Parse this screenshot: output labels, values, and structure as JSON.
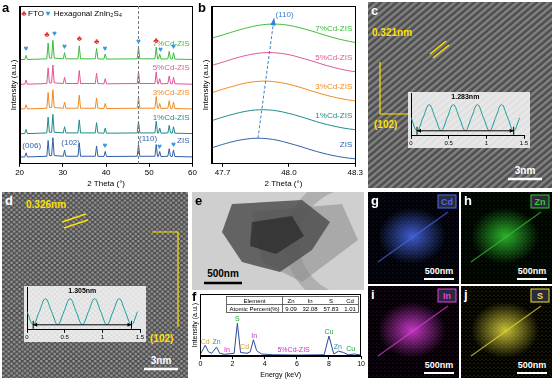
{
  "chart_data": [
    {
      "panel": "a",
      "type": "line",
      "x": [
        20,
        21.2,
        21.5,
        21.8,
        26.3,
        26.6,
        26.9,
        27.4,
        27.7,
        28.0,
        30.1,
        30.4,
        30.7,
        33.5,
        33.8,
        34.1,
        37.5,
        37.8,
        38.1,
        39.5,
        39.8,
        40.1,
        47.2,
        47.5,
        47.8,
        51.3,
        51.6,
        51.9,
        52.1,
        52.4,
        52.7,
        54.3,
        54.6,
        54.9,
        55.3,
        55.6,
        55.9,
        60
      ],
      "xlim": [
        20,
        60
      ],
      "xticks": [
        20,
        30,
        40,
        50,
        60
      ],
      "ylim": [
        0,
        115
      ],
      "x_label": "2 Theta (°)",
      "y_label": "Intensity (a.u.)",
      "tick_labels": "x",
      "grid": false,
      "series": [
        {
          "name": "ZIS",
          "color": "#2f5fa8",
          "values": [
            5,
            5,
            8,
            5,
            5.5,
            17,
            6,
            6,
            19,
            6,
            5.5,
            10,
            5.5,
            5.5,
            15,
            5.5,
            5.5,
            13,
            5.5,
            5.3,
            9,
            5.3,
            5.5,
            14,
            5.5,
            5.5,
            14,
            5.5,
            5.3,
            9,
            5.3,
            5.5,
            11,
            5.5,
            5.3,
            10,
            5.3,
            5
          ]
        },
        {
          "name": "1%Cd-ZIS",
          "color": "#1f8a8a",
          "values": [
            22,
            22,
            25,
            22,
            22.5,
            34,
            23,
            23,
            36,
            23,
            22.5,
            27,
            22.5,
            22.5,
            32,
            22.5,
            22.5,
            30,
            22.5,
            22.3,
            26,
            22.3,
            22.5,
            31,
            22.5,
            22.5,
            31,
            22.5,
            22.3,
            26,
            22.3,
            22.5,
            28,
            22.5,
            22.3,
            27,
            22.3,
            22
          ]
        },
        {
          "name": "3%Cd-ZIS",
          "color": "#f08a24",
          "values": [
            40,
            40,
            43,
            40,
            40.5,
            52,
            41,
            41,
            54,
            41,
            40.5,
            45,
            40.5,
            40.5,
            50,
            40.5,
            40.5,
            48,
            40.5,
            40.3,
            44,
            40.3,
            40.5,
            49,
            40.5,
            40.5,
            49,
            40.5,
            40.3,
            44,
            40.3,
            40.5,
            46,
            40.5,
            40.3,
            45,
            40.3,
            40
          ]
        },
        {
          "name": "5%Cd-ZIS",
          "color": "#e0559a",
          "values": [
            58,
            58,
            61,
            58,
            58.5,
            70,
            59,
            59,
            72,
            59,
            58.5,
            63,
            58.5,
            58.5,
            68,
            58.5,
            58.5,
            66,
            58.5,
            58.3,
            62,
            58.3,
            58.5,
            67,
            58.5,
            58.5,
            67,
            58.5,
            58.3,
            62,
            58.3,
            58.5,
            64,
            58.5,
            58.3,
            63,
            58.3,
            58
          ]
        },
        {
          "name": "7%Cd-ZIS",
          "color": "#3cbc3c",
          "values": [
            76,
            76,
            79,
            76,
            76.5,
            88,
            77,
            77,
            90,
            77,
            76.5,
            81,
            76.5,
            76.5,
            86,
            76.5,
            76.5,
            84,
            76.5,
            76.3,
            80,
            76.3,
            76.5,
            85,
            76.5,
            76.5,
            85,
            76.5,
            76.3,
            80,
            76.3,
            76.5,
            82,
            76.5,
            76.3,
            81,
            76.3,
            76
          ]
        }
      ],
      "vlines": [
        47.5
      ],
      "annotations": [
        {
          "text": "♣",
          "x": 21,
          "y": 109,
          "color": "#e03030"
        },
        {
          "text": "FTO",
          "x": 23.8,
          "y": 109,
          "color": "#000000"
        },
        {
          "text": "♥",
          "x": 26.6,
          "y": 109,
          "color": "#3a9ad9"
        },
        {
          "text": "Hexagonal ZnIn₂S₄",
          "x": 35.8,
          "y": 109,
          "color": "#000000"
        },
        {
          "text": "♥",
          "x": 21.5,
          "y": 84,
          "color": "#3a9ad9"
        },
        {
          "text": "♣",
          "x": 26.3,
          "y": 94,
          "color": "#e03030"
        },
        {
          "text": "♥",
          "x": 28.1,
          "y": 95,
          "color": "#3a9ad9"
        },
        {
          "text": "♥",
          "x": 30.4,
          "y": 85,
          "color": "#3a9ad9"
        },
        {
          "text": "♣",
          "x": 33.8,
          "y": 91,
          "color": "#e03030"
        },
        {
          "text": "♣",
          "x": 37.8,
          "y": 89,
          "color": "#e03030"
        },
        {
          "text": "♥",
          "x": 39.8,
          "y": 84,
          "color": "#3a9ad9"
        },
        {
          "text": "♥",
          "x": 47.5,
          "y": 89,
          "color": "#3a9ad9"
        },
        {
          "text": "♣",
          "x": 51.6,
          "y": 90,
          "color": "#e03030"
        },
        {
          "text": "♥",
          "x": 52.6,
          "y": 83,
          "color": "#3a9ad9"
        },
        {
          "text": "♥",
          "x": 55.6,
          "y": 85,
          "color": "#3a9ad9"
        },
        {
          "text": "(006)",
          "x": 22.8,
          "y": 13,
          "color": "#2f5fa8"
        },
        {
          "text": "(102)",
          "x": 31.8,
          "y": 15,
          "color": "#2f5fa8"
        },
        {
          "text": "♥",
          "x": 39.8,
          "y": 13,
          "color": "#3a9ad9"
        },
        {
          "text": "(110)",
          "x": 49.7,
          "y": 18.5,
          "color": "#2f5fa8"
        },
        {
          "text": "♥",
          "x": 52.4,
          "y": 12.5,
          "color": "#3a9ad9"
        },
        {
          "text": "♥",
          "x": 55.6,
          "y": 14,
          "color": "#3a9ad9"
        }
      ]
    },
    {
      "panel": "b",
      "type": "line",
      "x": [
        47.65,
        47.7,
        47.75,
        47.8,
        47.85,
        47.9,
        47.95,
        48.0,
        48.05,
        48.1,
        48.15,
        48.2,
        48.25,
        48.3
      ],
      "xlim": [
        47.65,
        48.3
      ],
      "xticks": [
        47.7,
        {
          "value": 48,
          "label": "48.0"
        },
        48.3
      ],
      "ylim": [
        0,
        105
      ],
      "x_label": "2 Theta (°)",
      "y_label": "Intensity (a.u.)",
      "tick_labels": "x",
      "grid": false,
      "series": [
        {
          "name": "ZIS",
          "color": "#2f5fa8",
          "values": [
            10.6,
            12.9,
            14.9,
            16.3,
            17,
            16.7,
            15.6,
            13.7,
            11.6,
            9.3,
            7.2,
            5.5,
            4.2,
            3.3
          ]
        },
        {
          "name": "1%Cd-ZIS",
          "color": "#1f8a8a",
          "values": [
            28.7,
            31.0,
            33.1,
            34.8,
            35.8,
            35.9,
            35.1,
            33.5,
            31.5,
            29.2,
            27.0,
            25.2,
            23.7,
            22.7
          ]
        },
        {
          "name": "3%Cd-ZIS",
          "color": "#f08a24",
          "values": [
            47.3,
            49.6,
            51.7,
            53.6,
            54.7,
            55,
            54.3,
            52.9,
            50.9,
            48.6,
            46.4,
            44.5,
            43.0,
            41.8
          ]
        },
        {
          "name": "5%Cd-ZIS",
          "color": "#e0559a",
          "values": [
            65.4,
            67.6,
            69.9,
            71.9,
            73.3,
            74,
            73.7,
            72.6,
            70.7,
            68.6,
            66.3,
            64.2,
            62.5,
            61.2
          ]
        },
        {
          "name": "7%Cd-ZIS",
          "color": "#3cbc3c",
          "values": [
            83.6,
            85.7,
            88,
            90.1,
            91.8,
            92.8,
            92.9,
            92.1,
            90.5,
            88.5,
            86.2,
            84,
            82.2,
            80.7
          ]
        }
      ],
      "trend_line": {
        "x": [
          47.86,
          47.93
        ],
        "y": [
          17,
          94
        ],
        "color": "#3a7fd0"
      },
      "annotations": [
        {
          "text": "(110)",
          "x": 47.98,
          "y": 99,
          "color": "#3a7fd0"
        }
      ]
    },
    {
      "panel": "f",
      "type": "line",
      "x": [
        0,
        0.3,
        0.5,
        0.7,
        1.0,
        1.2,
        1.5,
        2.1,
        2.3,
        2.5,
        2.9,
        3.1,
        3.3,
        3.5,
        3.8,
        4.5,
        6,
        7.7,
        8.0,
        8.3,
        8.6,
        8.9,
        9.2,
        9.6,
        10
      ],
      "values": [
        5,
        30,
        12,
        8,
        25,
        8,
        5,
        8,
        90,
        10,
        8,
        12,
        45,
        15,
        6,
        4,
        3,
        4,
        55,
        6,
        14,
        10,
        4,
        6,
        3
      ],
      "color": "#2b4c9b",
      "xlim": [
        0,
        10
      ],
      "xticks": [
        0,
        2,
        4,
        6,
        8,
        10
      ],
      "ylim": [
        0,
        170
      ],
      "x_label": "Energy (keV)",
      "y_label": "Intensity (a.u.)",
      "tick_labels": "x",
      "grid": false,
      "annotations": [
        {
          "text": "Cd",
          "x": 0.3,
          "y": 40,
          "color": "#d9a020"
        },
        {
          "text": "Zn",
          "x": 1.0,
          "y": 38,
          "color": "#2a8fb0"
        },
        {
          "text": "In",
          "x": 1.65,
          "y": 18,
          "color": "#d030c0"
        },
        {
          "text": "S",
          "x": 2.3,
          "y": 102,
          "color": "#20a040"
        },
        {
          "text": "Cd",
          "x": 2.75,
          "y": 24,
          "color": "#d9a020"
        },
        {
          "text": "In",
          "x": 3.35,
          "y": 56,
          "color": "#d030c0"
        },
        {
          "text": "Cu",
          "x": 8.0,
          "y": 66,
          "color": "#20a040"
        },
        {
          "text": "Zn",
          "x": 8.55,
          "y": 26,
          "color": "#2a8fb0"
        },
        {
          "text": "Cu",
          "x": 9.35,
          "y": 20,
          "color": "#20a040"
        },
        {
          "text": "5%Cd-ZIS",
          "x": 5.8,
          "y": 16,
          "color": "#d030c0"
        }
      ],
      "table": {
        "columns": [
          "Element",
          "Zn",
          "In",
          "S",
          "Cd"
        ],
        "rows": [
          [
            "Atomic Percent(%)",
            9.09,
            32.08,
            57.83,
            1.01
          ]
        ]
      }
    }
  ],
  "images": [
    {
      "panel": "c",
      "spacing": "0.321nm",
      "plane": "(102)",
      "scale_bar": "3nm",
      "inset": {
        "type": "line",
        "x": [
          0,
          0.08,
          0.16,
          0.241,
          0.321,
          0.401,
          0.481,
          0.561,
          0.642,
          0.722,
          0.802,
          0.882,
          0.962,
          1.043,
          1.123,
          1.203,
          1.283,
          1.363,
          1.443
        ],
        "values": [
          0,
          -1,
          0,
          1,
          0,
          -1,
          0,
          1,
          0,
          -1,
          0,
          1,
          0,
          -1,
          0,
          1,
          0,
          -1,
          0
        ],
        "color": "#1a9a9a",
        "xlim": [
          0,
          1.5
        ],
        "xticks": [
          0,
          0.5,
          1,
          1.5
        ],
        "ylim": [
          -1.4,
          1.9
        ],
        "tick_labels": "x",
        "measure": {
          "label": "1.283nm",
          "from": 0.08,
          "to": 1.363
        }
      }
    },
    {
      "panel": "d",
      "spacing": "0.326nm",
      "plane": "(102)",
      "scale_bar": "3nm",
      "inset": {
        "type": "line",
        "x": [
          0,
          0.082,
          0.163,
          0.245,
          0.326,
          0.408,
          0.49,
          0.571,
          0.653,
          0.734,
          0.816,
          0.898,
          0.979,
          1.061,
          1.142,
          1.224,
          1.305,
          1.387,
          1.468
        ],
        "values": [
          0,
          -1,
          0,
          1,
          0,
          -1,
          0,
          1,
          0,
          -1,
          0,
          1,
          0,
          -1,
          0,
          1,
          0,
          -1,
          0
        ],
        "color": "#1a9a9a",
        "xlim": [
          0,
          1.5
        ],
        "xticks": [
          0,
          0.5,
          1,
          1.5
        ],
        "ylim": [
          -1.4,
          1.9
        ],
        "tick_labels": "x",
        "measure": {
          "label": "1.305nm",
          "from": 0.082,
          "to": 1.387
        }
      }
    },
    {
      "panel": "e",
      "scale_bar": "500nm"
    },
    {
      "panel": "g",
      "element": "Cd",
      "color": "#4a6cf0",
      "scale_bar": "500nm"
    },
    {
      "panel": "h",
      "element": "Zn",
      "color": "#33cc33",
      "scale_bar": "500nm"
    },
    {
      "panel": "i",
      "element": "In",
      "color": "#e040e0",
      "scale_bar": "500nm"
    },
    {
      "panel": "j",
      "element": "S",
      "color": "#e8e040",
      "scale_bar": "500nm"
    }
  ]
}
